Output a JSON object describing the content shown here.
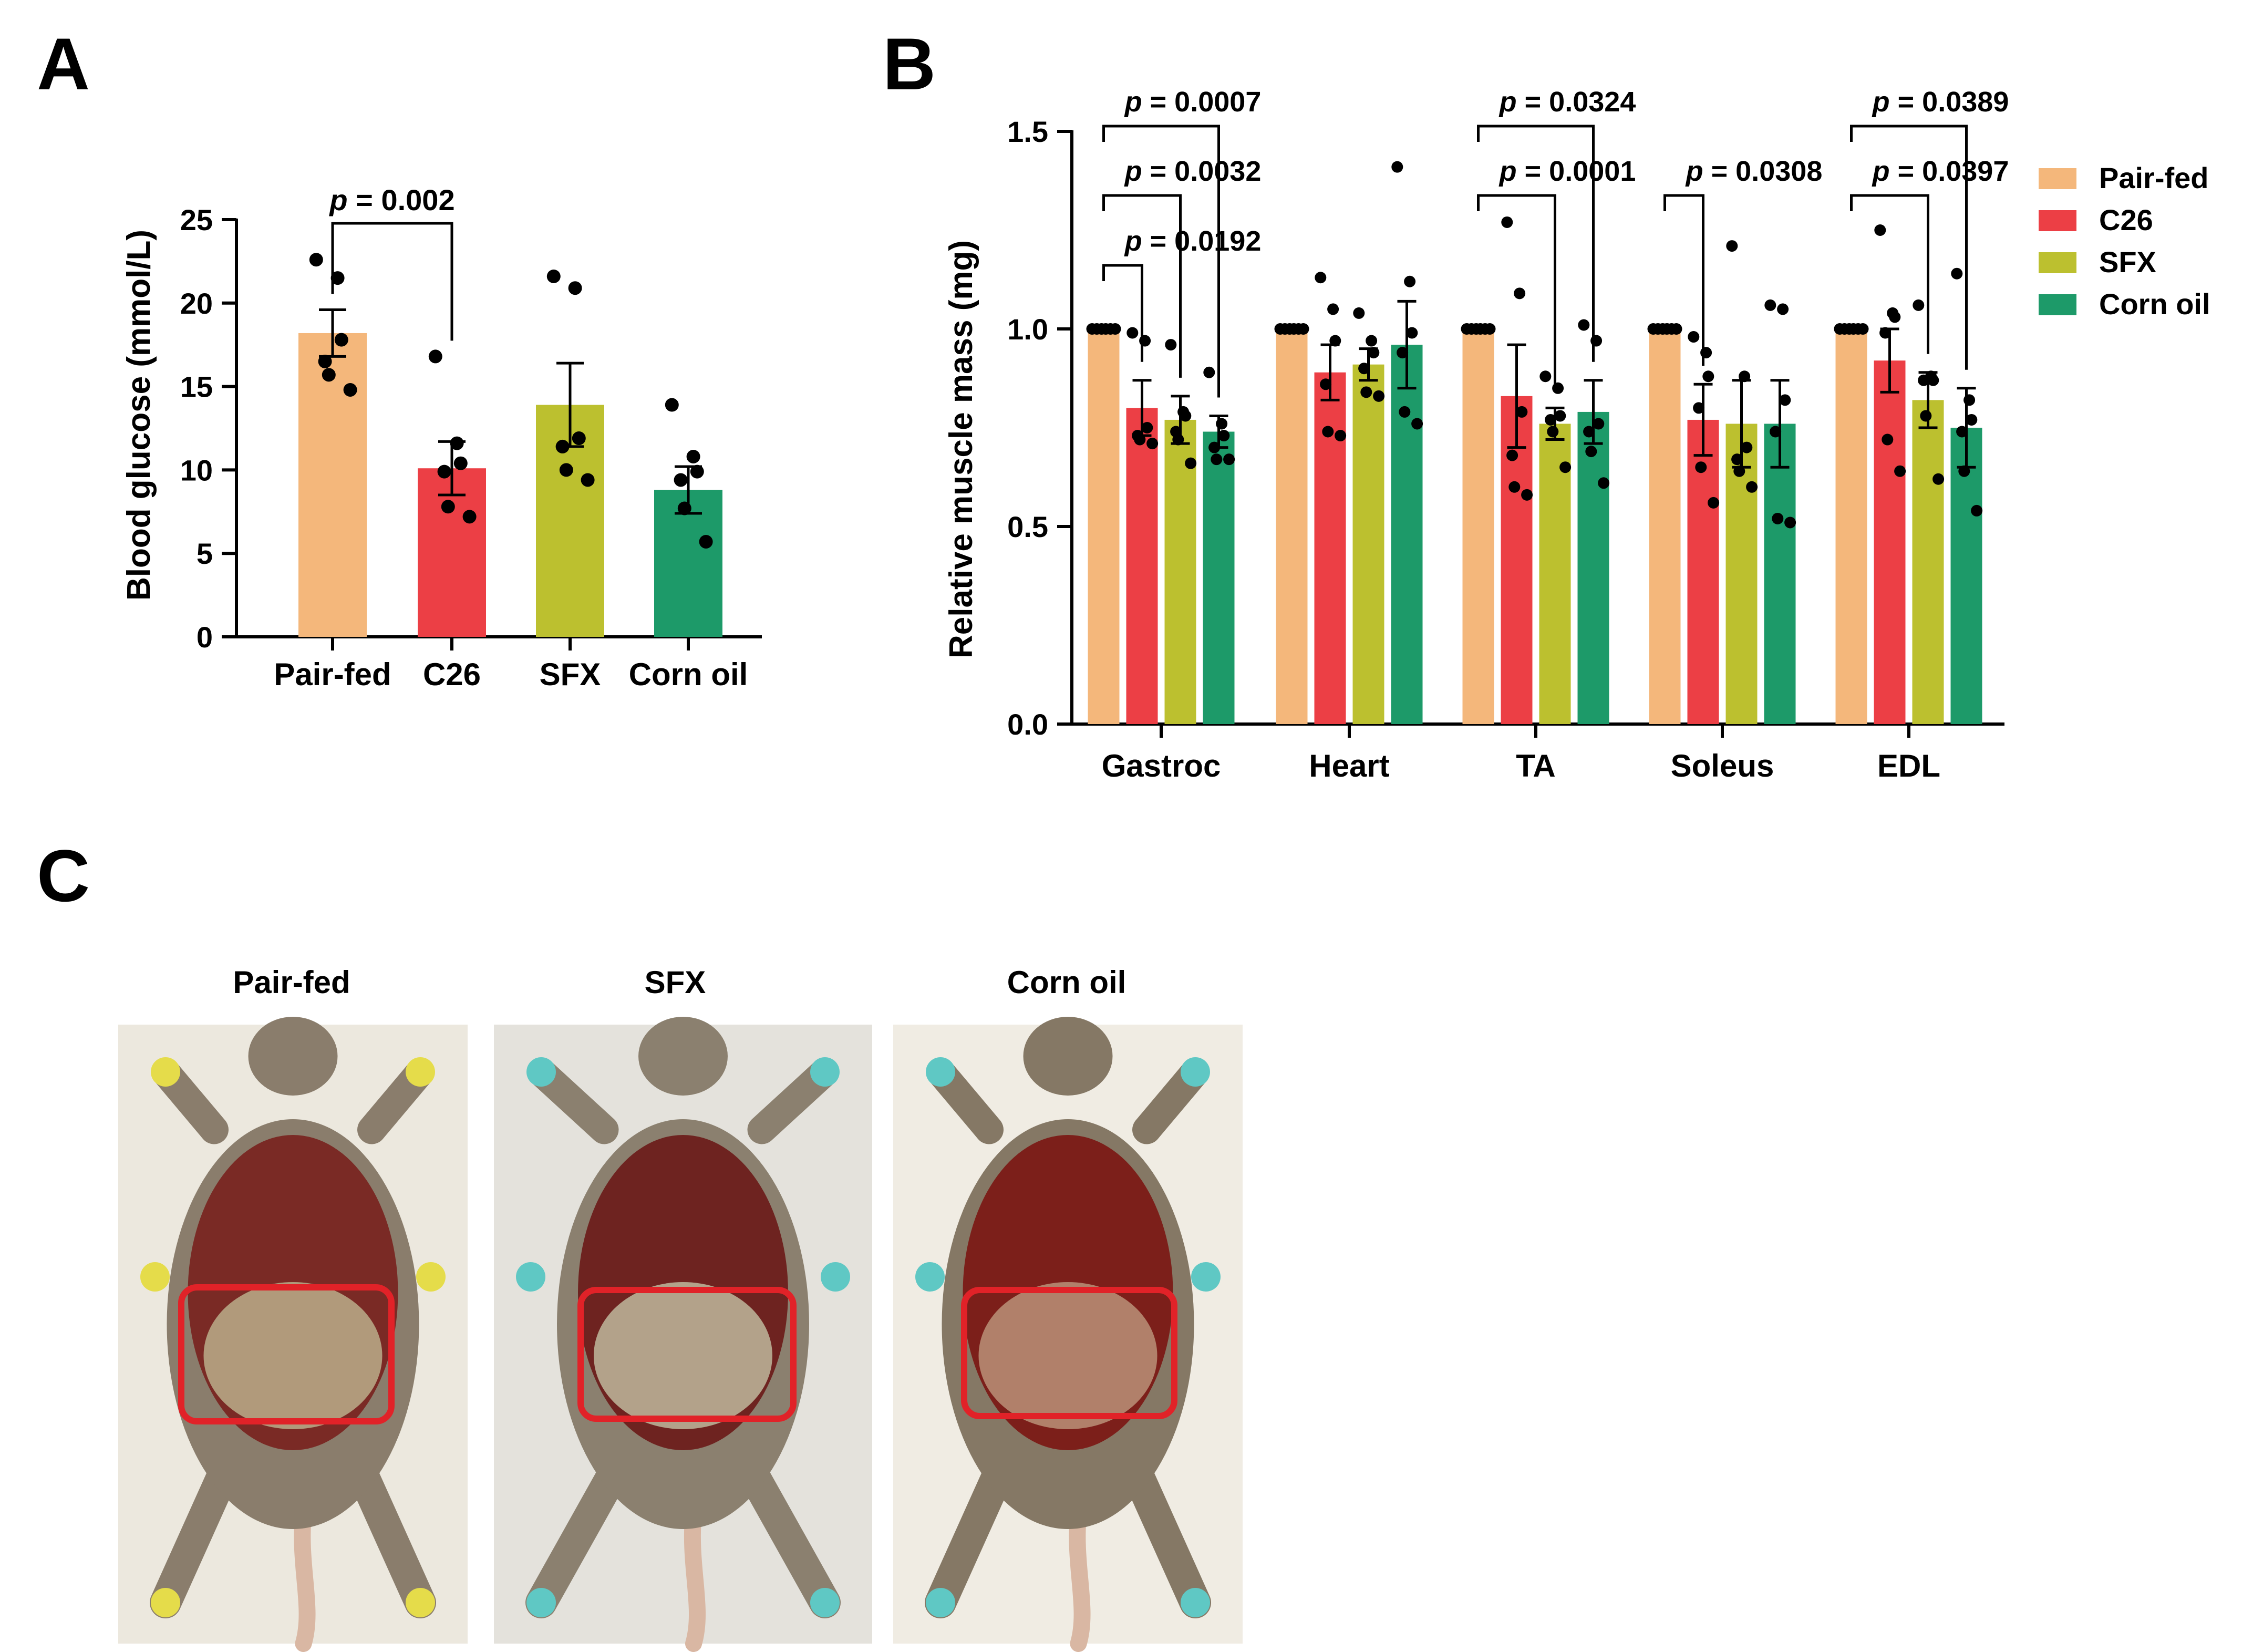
{
  "panels": {
    "a": "A",
    "b": "B",
    "c": "C"
  },
  "colors": {
    "Pair-fed": "#f4b77b",
    "C26": "#ec3f45",
    "SFX": "#bcc02f",
    "Corn oil": "#1d9a69",
    "axis": "#000000",
    "highlight_box": "#e12228"
  },
  "chart_data": [
    {
      "id": "A",
      "type": "bar",
      "title": "",
      "xlabel": "",
      "ylabel": "Blood glucose (mmol/L)",
      "ylim": [
        0,
        25
      ],
      "yticks": [
        0,
        5,
        10,
        15,
        20,
        25
      ],
      "categories": [
        "Pair-fed",
        "C26",
        "SFX",
        "Corn oil"
      ],
      "values": [
        18.2,
        10.1,
        13.9,
        8.8
      ],
      "sem": [
        1.4,
        1.6,
        2.5,
        1.4
      ],
      "points": [
        [
          22.6,
          21.5,
          17.8,
          16.5,
          15.7,
          14.8
        ],
        [
          16.8,
          11.6,
          10.4,
          9.9,
          7.8,
          7.2
        ],
        [
          21.6,
          20.9,
          11.9,
          11.4,
          10.0,
          9.4
        ],
        [
          13.9,
          10.8,
          9.9,
          9.4,
          7.7,
          5.7
        ]
      ],
      "comparisons": [
        {
          "from": 0,
          "to": 1,
          "label_p": "p",
          "label_value": " = 0.002"
        }
      ]
    },
    {
      "id": "B",
      "type": "bar",
      "title": "",
      "xlabel": "",
      "ylabel": "Relative muscle mass (mg)",
      "ylim": [
        0,
        1.5
      ],
      "yticks": [
        "0.0",
        "0.5",
        "1.0",
        "1.5"
      ],
      "categories": [
        "Gastroc",
        "Heart",
        "TA",
        "Soleus",
        "EDL"
      ],
      "series": [
        {
          "name": "Pair-fed",
          "values": [
            1.0,
            1.0,
            1.0,
            1.0,
            1.0
          ],
          "sem": [
            0,
            0,
            0,
            0,
            0
          ]
        },
        {
          "name": "C26",
          "values": [
            0.8,
            0.89,
            0.83,
            0.77,
            0.92
          ],
          "sem": [
            0.07,
            0.07,
            0.13,
            0.09,
            0.08
          ]
        },
        {
          "name": "SFX",
          "values": [
            0.77,
            0.91,
            0.76,
            0.76,
            0.82
          ],
          "sem": [
            0.06,
            0.04,
            0.04,
            0.11,
            0.07
          ]
        },
        {
          "name": "Corn oil",
          "values": [
            0.74,
            0.96,
            0.79,
            0.76,
            0.75
          ],
          "sem": [
            0.04,
            0.11,
            0.08,
            0.11,
            0.1
          ]
        }
      ],
      "points": [
        [
          [
            1.0,
            1.0,
            1.0,
            1.0,
            1.0,
            1.0
          ],
          [
            0.99,
            0.97,
            0.75,
            0.73,
            0.72,
            0.71
          ],
          [
            0.96,
            0.79,
            0.78,
            0.74,
            0.72,
            0.66
          ],
          [
            0.89,
            0.76,
            0.73,
            0.7,
            0.67,
            0.67
          ]
        ],
        [
          [
            1.0,
            1.0,
            1.0,
            1.0,
            1.0,
            1.0
          ],
          [
            1.13,
            1.05,
            0.97,
            0.86,
            0.74,
            0.73
          ],
          [
            1.04,
            0.97,
            0.94,
            0.9,
            0.84,
            0.83
          ],
          [
            1.41,
            1.12,
            0.99,
            0.94,
            0.79,
            0.76
          ]
        ],
        [
          [
            1.0,
            1.0,
            1.0,
            1.0,
            1.0,
            1.0
          ],
          [
            1.27,
            1.09,
            0.79,
            0.68,
            0.6,
            0.58
          ],
          [
            0.88,
            0.85,
            0.78,
            0.77,
            0.74,
            0.65
          ],
          [
            1.01,
            0.97,
            0.76,
            0.74,
            0.69,
            0.61
          ]
        ],
        [
          [
            1.0,
            1.0,
            1.0,
            1.0,
            1.0,
            1.0
          ],
          [
            0.98,
            0.94,
            0.88,
            0.8,
            0.65,
            0.56
          ],
          [
            1.21,
            0.88,
            0.7,
            0.67,
            0.64,
            0.6
          ],
          [
            1.06,
            1.05,
            0.82,
            0.74,
            0.52,
            0.51
          ]
        ],
        [
          [
            1.0,
            1.0,
            1.0,
            1.0,
            1.0,
            1.0
          ],
          [
            1.25,
            1.04,
            1.03,
            0.99,
            0.72,
            0.64
          ],
          [
            1.06,
            0.88,
            0.87,
            0.87,
            0.78,
            0.62
          ],
          [
            1.14,
            0.82,
            0.77,
            0.74,
            0.64,
            0.54
          ]
        ]
      ],
      "comparisons": [
        {
          "category": 0,
          "from": 0,
          "to": 3,
          "level": 3,
          "label_p": "p",
          "label_value": " = 0.0007"
        },
        {
          "category": 0,
          "from": 0,
          "to": 2,
          "level": 2,
          "label_p": "p",
          "label_value": " = 0.0032"
        },
        {
          "category": 0,
          "from": 0,
          "to": 1,
          "level": 1,
          "label_p": "p",
          "label_value": " = 0.0192"
        },
        {
          "category": 2,
          "from": 0,
          "to": 3,
          "level": 3,
          "label_p": "p",
          "label_value": " = 0.0324"
        },
        {
          "category": 2,
          "from": 0,
          "to": 2,
          "level": 2,
          "label_p": "p",
          "label_value": " = 0.0001"
        },
        {
          "category": 3,
          "from": 0,
          "to": 1,
          "level": 2,
          "label_p": "p",
          "label_value": " = 0.0308"
        },
        {
          "category": 4,
          "from": 0,
          "to": 3,
          "level": 3,
          "label_p": "p",
          "label_value": " = 0.0389"
        },
        {
          "category": 4,
          "from": 0,
          "to": 2,
          "level": 2,
          "label_p": "p",
          "label_value": " = 0.0397"
        }
      ],
      "legend": [
        "Pair-fed",
        "C26",
        "SFX",
        "Corn oil"
      ],
      "legend_position": "right"
    }
  ],
  "photos": {
    "labels": [
      "Pair-fed",
      "SFX",
      "Corn oil"
    ]
  }
}
